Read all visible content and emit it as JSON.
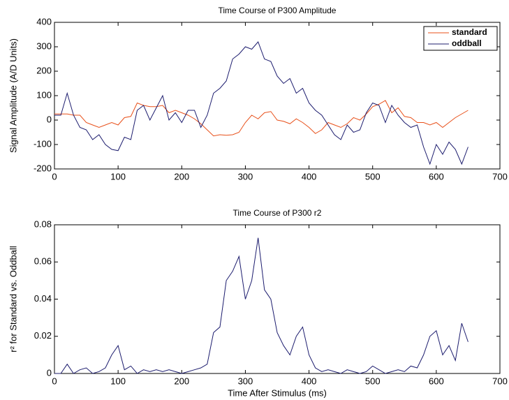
{
  "chart_data": [
    {
      "type": "line",
      "title": "Time Course of P300 Amplitude",
      "ylabel": "Signal Amplitude (A/D Units)",
      "x": [
        0,
        10,
        20,
        30,
        40,
        50,
        60,
        70,
        80,
        90,
        100,
        110,
        120,
        130,
        140,
        150,
        160,
        170,
        180,
        190,
        200,
        210,
        220,
        230,
        240,
        250,
        260,
        270,
        280,
        290,
        300,
        310,
        320,
        330,
        340,
        350,
        360,
        370,
        380,
        390,
        400,
        410,
        420,
        430,
        440,
        450,
        460,
        470,
        480,
        490,
        500,
        510,
        520,
        530,
        540,
        550,
        560,
        570,
        580,
        590,
        600,
        610,
        620,
        630,
        640,
        650
      ],
      "series": [
        {
          "name": "standard",
          "color": "#e8501a",
          "values": [
            25,
            25,
            25,
            20,
            20,
            -10,
            -20,
            -30,
            -20,
            -10,
            -20,
            10,
            15,
            70,
            60,
            55,
            55,
            60,
            30,
            40,
            30,
            20,
            5,
            -15,
            -40,
            -65,
            -60,
            -62,
            -60,
            -50,
            -10,
            20,
            5,
            30,
            35,
            0,
            -5,
            -15,
            5,
            -10,
            -30,
            -55,
            -40,
            -10,
            -20,
            -30,
            -15,
            10,
            0,
            25,
            55,
            65,
            80,
            30,
            50,
            15,
            10,
            -10,
            -10,
            -20,
            -10,
            -30,
            -10,
            10,
            25,
            40
          ]
        },
        {
          "name": "oddball",
          "color": "#1c1c6e",
          "values": [
            20,
            20,
            110,
            20,
            -30,
            -40,
            -80,
            -60,
            -100,
            -120,
            -125,
            -70,
            -80,
            40,
            60,
            0,
            50,
            100,
            0,
            30,
            -10,
            40,
            40,
            -30,
            20,
            110,
            130,
            160,
            250,
            270,
            300,
            290,
            320,
            250,
            240,
            180,
            150,
            170,
            110,
            130,
            70,
            40,
            20,
            -20,
            -60,
            -80,
            -20,
            -50,
            -40,
            30,
            70,
            60,
            -10,
            60,
            20,
            -10,
            -30,
            -20,
            -110,
            -180,
            -100,
            -140,
            -90,
            -120,
            -180,
            -110
          ]
        }
      ],
      "xlim": [
        0,
        700
      ],
      "xticks": [
        0,
        100,
        200,
        300,
        400,
        500,
        600,
        700
      ],
      "ylim": [
        -200,
        400
      ],
      "yticks": [
        -200,
        -100,
        0,
        100,
        200,
        300,
        400
      ],
      "legend": "upper right",
      "grid": false
    },
    {
      "type": "line",
      "title": "Time Course of P300 r2",
      "xlabel": "Time After Stimulus (ms)",
      "ylabel": "r² for Standard vs. Oddball",
      "x": [
        0,
        10,
        20,
        30,
        40,
        50,
        60,
        70,
        80,
        90,
        100,
        110,
        120,
        130,
        140,
        150,
        160,
        170,
        180,
        190,
        200,
        210,
        220,
        230,
        240,
        250,
        260,
        270,
        280,
        290,
        300,
        310,
        320,
        330,
        340,
        350,
        360,
        370,
        380,
        390,
        400,
        410,
        420,
        430,
        440,
        450,
        460,
        470,
        480,
        490,
        500,
        510,
        520,
        530,
        540,
        550,
        560,
        570,
        580,
        590,
        600,
        610,
        620,
        630,
        640,
        650
      ],
      "series": [
        {
          "color": "#1c1c6e",
          "values": [
            0,
            0,
            0.005,
            0,
            0.002,
            0.003,
            0,
            0.001,
            0.003,
            0.01,
            0.015,
            0.002,
            0.004,
            0,
            0.002,
            0.001,
            0.002,
            0.001,
            0.002,
            0.001,
            0,
            0.001,
            0.002,
            0.003,
            0.005,
            0.022,
            0.025,
            0.05,
            0.055,
            0.063,
            0.04,
            0.05,
            0.073,
            0.045,
            0.04,
            0.022,
            0.015,
            0.01,
            0.02,
            0.025,
            0.01,
            0.003,
            0.001,
            0.002,
            0.001,
            0,
            0.002,
            0.001,
            0,
            0.001,
            0.004,
            0.002,
            0,
            0.001,
            0.002,
            0.001,
            0.004,
            0.003,
            0.01,
            0.02,
            0.023,
            0.01,
            0.015,
            0.007,
            0.027,
            0.017
          ]
        }
      ],
      "xlim": [
        0,
        700
      ],
      "xticks": [
        0,
        100,
        200,
        300,
        400,
        500,
        600,
        700
      ],
      "ylim": [
        0,
        0.08
      ],
      "yticks": [
        0,
        0.02,
        0.04,
        0.06,
        0.08
      ],
      "grid": false
    }
  ]
}
